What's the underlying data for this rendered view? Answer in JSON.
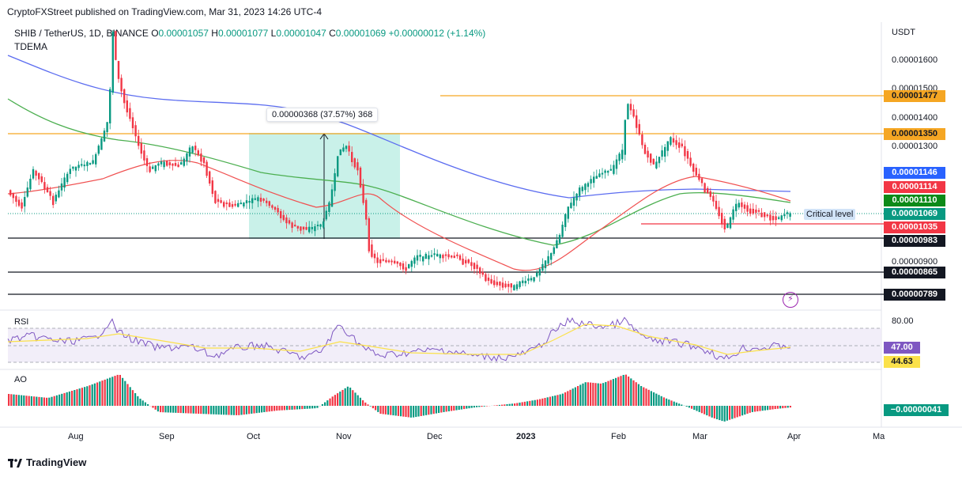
{
  "header": {
    "publisher": "CryptoFXStreet published on TradingView.com, Mar 31, 2023 14:26 UTC-4",
    "symbol": "SHIB / TetherUS, 1D, BINANCE",
    "ohlc": [
      {
        "k": "O",
        "v": "0.00001057"
      },
      {
        "k": "H",
        "v": "0.00001077"
      },
      {
        "k": "L",
        "v": "0.00001047"
      },
      {
        "k": "C",
        "v": "0.00001069"
      }
    ],
    "change": "+0.00000012 (+1.14%)",
    "indicator": "TDEMA",
    "currency": "USDT"
  },
  "price_axis": {
    "labels": [
      "0.00001600",
      "0.00001500",
      "0.00001400",
      "0.00001300",
      "0.00000900"
    ]
  },
  "price_tags": [
    {
      "text": "0.00001477",
      "bg": "#f5a623",
      "fg": "#131722"
    },
    {
      "text": "0.00001350",
      "bg": "#f5a623",
      "fg": "#131722"
    },
    {
      "text": "0.00001146",
      "bg": "#2962ff",
      "fg": "#ffffff"
    },
    {
      "text": "0.00001114",
      "bg": "#f23645",
      "fg": "#ffffff"
    },
    {
      "text": "0.00001110",
      "bg": "#0c8a18",
      "fg": "#ffffff"
    },
    {
      "text": "0.00001069",
      "bg": "#089981",
      "fg": "#ffffff"
    },
    {
      "text": "0.00001035",
      "bg": "#f23645",
      "fg": "#ffffff"
    },
    {
      "text": "0.00000983",
      "bg": "#131722",
      "fg": "#ffffff"
    },
    {
      "text": "0.00000865",
      "bg": "#131722",
      "fg": "#ffffff"
    },
    {
      "text": "0.00000789",
      "bg": "#131722",
      "fg": "#ffffff"
    }
  ],
  "annotations": {
    "critical_level": "Critical level",
    "measure": "0.00000368 (37.57%) 368"
  },
  "rsi": {
    "name": "RSI",
    "upper_label": "80.00",
    "value_tag": "47.00",
    "ma_tag": "44.63",
    "value_color": "#7e57c2",
    "ma_color": "#fbe14a"
  },
  "ao": {
    "name": "AO",
    "value_tag": "−0.00000041",
    "value_color": "#089981"
  },
  "time_axis": [
    "Aug",
    "Sep",
    "Oct",
    "Nov",
    "Dec",
    "2023",
    "Feb",
    "Mar",
    "Apr",
    "Ma"
  ],
  "footer": {
    "brand": "TradingView"
  },
  "colors": {
    "up": "#089981",
    "down": "#f23645",
    "ema_blue": "#5b6cf0",
    "ema_green": "#4caf50",
    "ema_red": "#f05050",
    "resistance": "#f5a623"
  },
  "icons": [
    "lightning-icon",
    "tradingview-logo-icon"
  ]
}
